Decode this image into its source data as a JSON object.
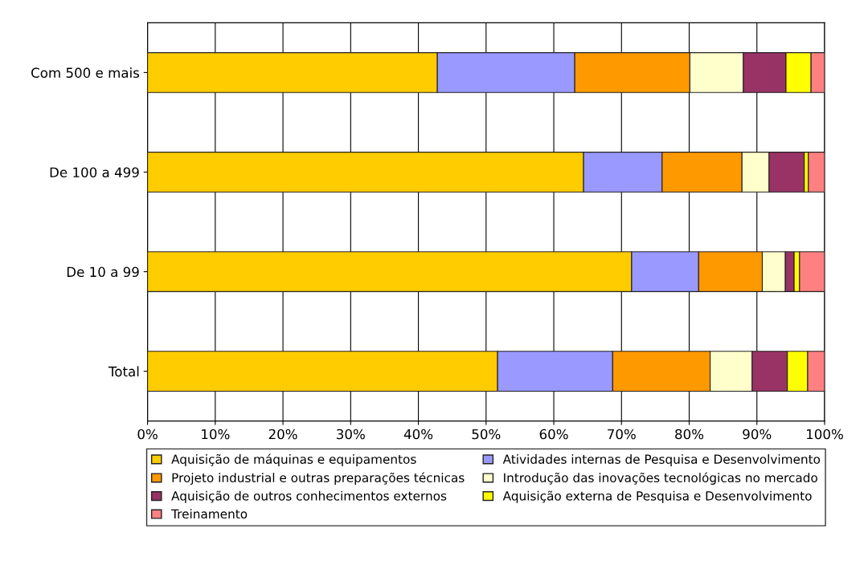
{
  "chart_data": {
    "type": "bar",
    "orientation": "horizontal",
    "stacked": true,
    "categories": [
      "Com 500 e mais",
      "De 100 a 499",
      "De 10 a 99",
      "Total"
    ],
    "series": [
      {
        "name": "Aquisição de máquinas e equipamentos",
        "color": "#ffcc00",
        "values": [
          42.8,
          64.4,
          71.5,
          51.7
        ]
      },
      {
        "name": "Atividades internas de Pesquisa e Desenvolvimento",
        "color": "#9999ff",
        "values": [
          20.3,
          11.6,
          9.9,
          17.0
        ]
      },
      {
        "name": "Projeto industrial e outras preparações técnicas",
        "color": "#ff9900",
        "values": [
          17.0,
          11.8,
          9.4,
          14.4
        ]
      },
      {
        "name": "Introdução das inovações tecnológicas no mercado",
        "color": "#ffffcc",
        "values": [
          7.9,
          4.0,
          3.4,
          6.2
        ]
      },
      {
        "name": "Aquisição de outros conhecimentos externos",
        "color": "#993366",
        "values": [
          6.3,
          5.2,
          1.3,
          5.2
        ]
      },
      {
        "name": "Aquisição externa de Pesquisa e Desenvolvimento",
        "color": "#ffff00",
        "values": [
          3.7,
          0.6,
          0.8,
          3.0
        ]
      },
      {
        "name": "Treinamento",
        "color": "#ff8080",
        "values": [
          2.0,
          2.4,
          3.7,
          2.5
        ]
      }
    ],
    "xlim": [
      0,
      100
    ],
    "xticks": [
      {
        "value": 0,
        "label": "0%"
      },
      {
        "value": 10,
        "label": "10%"
      },
      {
        "value": 20,
        "label": "20%"
      },
      {
        "value": 30,
        "label": "30%"
      },
      {
        "value": 40,
        "label": "40%"
      },
      {
        "value": 50,
        "label": "50%"
      },
      {
        "value": 60,
        "label": "60%"
      },
      {
        "value": 70,
        "label": "70%"
      },
      {
        "value": 80,
        "label": "80%"
      },
      {
        "value": 90,
        "label": "90%"
      },
      {
        "value": 100,
        "label": "100%"
      }
    ],
    "grid": "x",
    "legend": "bottom"
  }
}
